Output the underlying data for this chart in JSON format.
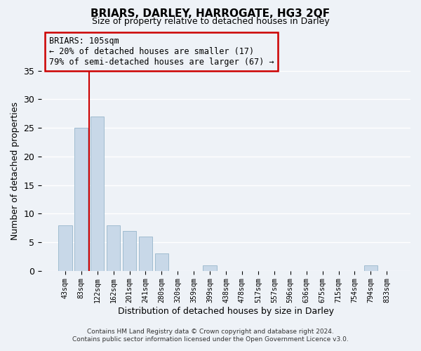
{
  "title": "BRIARS, DARLEY, HARROGATE, HG3 2QF",
  "subtitle": "Size of property relative to detached houses in Darley",
  "xlabel": "Distribution of detached houses by size in Darley",
  "ylabel": "Number of detached properties",
  "bar_color": "#c8d8e8",
  "bar_edge_color": "#a0bcd0",
  "background_color": "#eef2f7",
  "grid_color": "#ffffff",
  "annotation_box_edge": "#cc0000",
  "annotation_line_color": "#cc0000",
  "annotation_text": [
    "BRIARS: 105sqm",
    "← 20% of detached houses are smaller (17)",
    "79% of semi-detached houses are larger (67) →"
  ],
  "categories": [
    "43sqm",
    "83sqm",
    "122sqm",
    "162sqm",
    "201sqm",
    "241sqm",
    "280sqm",
    "320sqm",
    "359sqm",
    "399sqm",
    "438sqm",
    "478sqm",
    "517sqm",
    "557sqm",
    "596sqm",
    "636sqm",
    "675sqm",
    "715sqm",
    "754sqm",
    "794sqm",
    "833sqm"
  ],
  "values": [
    8,
    25,
    27,
    8,
    7,
    6,
    3,
    0,
    0,
    1,
    0,
    0,
    0,
    0,
    0,
    0,
    0,
    0,
    0,
    1,
    0
  ],
  "ylim": [
    0,
    35
  ],
  "yticks": [
    0,
    5,
    10,
    15,
    20,
    25,
    30,
    35
  ],
  "footer_lines": [
    "Contains HM Land Registry data © Crown copyright and database right 2024.",
    "Contains public sector information licensed under the Open Government Licence v3.0."
  ]
}
